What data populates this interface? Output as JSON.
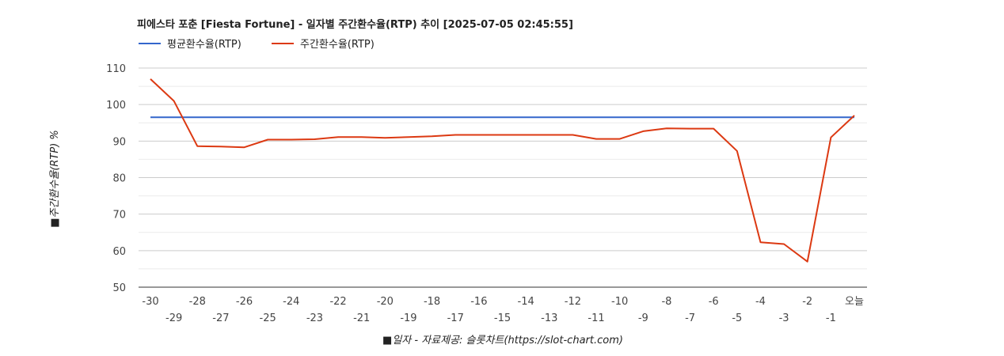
{
  "chart_data": {
    "type": "line",
    "title": "피에스타 포춘 [Fiesta Fortune] - 일자별 주간환수율(RTP) 추이 [2025-07-05 02:45:55]",
    "xlabel": "■일자 - 자료제공: 슬롯차트(https://slot-chart.com)",
    "ylabel": "■주간환수율(RTP) %",
    "ylim": [
      50,
      110
    ],
    "yticks": [
      50,
      60,
      70,
      80,
      90,
      100,
      110
    ],
    "categories": [
      "-30",
      "-29",
      "-28",
      "-27",
      "-26",
      "-25",
      "-24",
      "-23",
      "-22",
      "-21",
      "-20",
      "-19",
      "-18",
      "-17",
      "-16",
      "-15",
      "-14",
      "-13",
      "-12",
      "-11",
      "-10",
      "-9",
      "-8",
      "-7",
      "-6",
      "-5",
      "-4",
      "-3",
      "-2",
      "-1",
      "오늘"
    ],
    "series": [
      {
        "name": "평균환수율(RTP)",
        "color": "#3366cc",
        "values": [
          96.5,
          96.5,
          96.5,
          96.5,
          96.5,
          96.5,
          96.5,
          96.5,
          96.5,
          96.5,
          96.5,
          96.5,
          96.5,
          96.5,
          96.5,
          96.5,
          96.5,
          96.5,
          96.5,
          96.5,
          96.5,
          96.5,
          96.5,
          96.5,
          96.5,
          96.5,
          96.5,
          96.5,
          96.5,
          96.5,
          96.5
        ]
      },
      {
        "name": "주간환수율(RTP)",
        "color": "#dc3912",
        "values": [
          107,
          101,
          88.6,
          88.5,
          88.3,
          90.4,
          90.4,
          90.5,
          91.1,
          91.1,
          90.9,
          91.1,
          91.3,
          91.7,
          91.7,
          91.7,
          91.7,
          91.7,
          91.7,
          90.6,
          90.6,
          92.7,
          93.5,
          93.4,
          93.4,
          87.3,
          62.3,
          61.8,
          57.0,
          91.0,
          97.0
        ]
      }
    ],
    "legend_position": "top-left",
    "grid": true
  }
}
